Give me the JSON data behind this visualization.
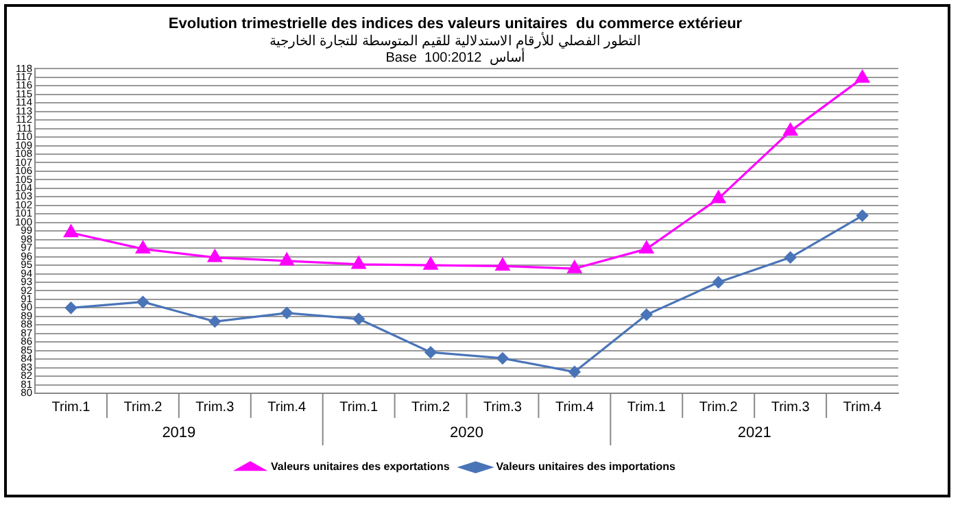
{
  "chart_data": {
    "type": "line",
    "title": "Evolution trimestrielle des indices des valeurs unitaires  du commerce extérieur",
    "subtitle": "التطور الفصلي للأرقام الاستدلالية للقيم المتوسطة للتجارة الخارجية",
    "annotations": [
      "Base  100:2012  أساس",
      "2019",
      "2020",
      "2021"
    ],
    "categories": [
      "Trim.1",
      "Trim.2",
      "Trim.3",
      "Trim.4",
      "Trim.1",
      "Trim.2",
      "Trim.3",
      "Trim.4",
      "Trim.1",
      "Trim.2",
      "Trim.3",
      "Trim.4"
    ],
    "series": [
      {
        "name": "Valeurs unitaires des exportations",
        "color": "#ff00ff",
        "marker": "triangle",
        "values": [
          98.8,
          96.9,
          95.9,
          95.5,
          95.1,
          95.0,
          94.9,
          94.6,
          96.9,
          102.8,
          110.7,
          116.9
        ]
      },
      {
        "name": "Valeurs unitaires des importations",
        "color": "#4a74b8",
        "marker": "diamond",
        "values": [
          90.0,
          90.7,
          88.4,
          89.4,
          88.7,
          84.8,
          84.1,
          82.5,
          89.2,
          93.0,
          95.9,
          100.8
        ]
      }
    ],
    "ylim": [
      80,
      118
    ],
    "yticks": [
      80,
      81,
      82,
      83,
      84,
      85,
      86,
      87,
      88,
      89,
      90,
      91,
      92,
      93,
      94,
      95,
      96,
      97,
      98,
      99,
      100,
      101,
      102,
      103,
      104,
      105,
      106,
      107,
      108,
      109,
      110,
      111,
      112,
      113,
      114,
      115,
      116,
      117,
      118
    ],
    "grid": "y",
    "legend": "bottom"
  }
}
